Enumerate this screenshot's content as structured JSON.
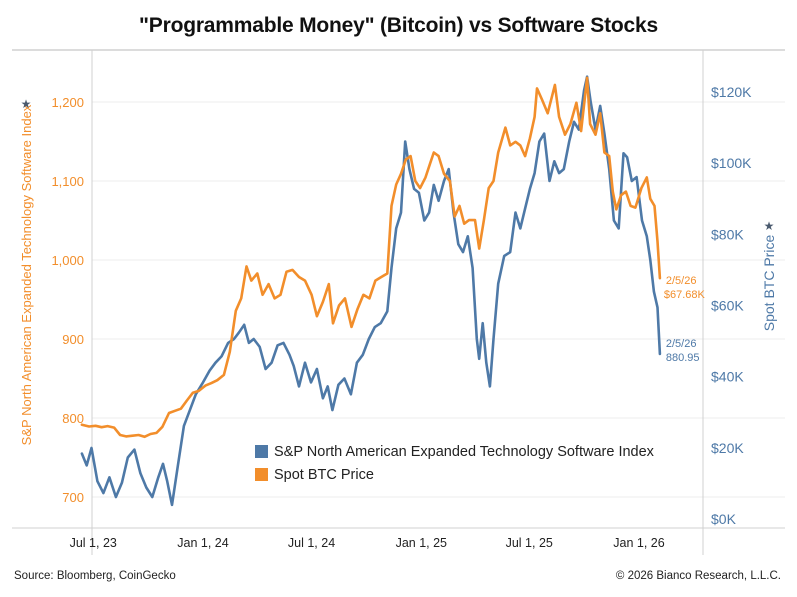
{
  "title": "\"Programmable Money\" (Bitcoin) vs Software Stocks",
  "footer": {
    "source": "Source: Bloomberg, CoinGecko",
    "copyright": "© 2026 Bianco Research, L.L.C."
  },
  "colors": {
    "software": "#4e79a7",
    "btc": "#f28e2b",
    "grid": "#ececec",
    "axis": "#d0d0d0",
    "left_axis_text": "#f28e2b",
    "right_axis_text": "#4e79a7"
  },
  "chart_data": {
    "type": "line",
    "title": "\"Programmable Money\" (Bitcoin) vs Software Stocks",
    "xlabel": "",
    "x_ticks": [
      {
        "label": "Jul 1, 23",
        "date": "2023-07-01"
      },
      {
        "label": "Jan 1, 24",
        "date": "2024-01-01"
      },
      {
        "label": "Jul 1, 24",
        "date": "2024-07-01"
      },
      {
        "label": "Jan 1, 25",
        "date": "2025-01-01"
      },
      {
        "label": "Jul 1, 25",
        "date": "2025-07-01"
      },
      {
        "label": "Jan 1, 26",
        "date": "2026-01-01"
      }
    ],
    "x_range": [
      "2023-06-10",
      "2026-02-05"
    ],
    "y_left": {
      "label": "S&P North American Expanded Technology Software Index",
      "range": [
        675,
        1235
      ],
      "ticks": [
        "700",
        "800",
        "900",
        "1,000",
        "1,100",
        "1,200"
      ],
      "tick_values": [
        700,
        800,
        900,
        1000,
        1100,
        1200
      ]
    },
    "y_right": {
      "label": "Spot BTC Price",
      "range": [
        0,
        128000
      ],
      "ticks": [
        "$0K",
        "$20K",
        "$40K",
        "$60K",
        "$80K",
        "$100K",
        "$120K"
      ],
      "tick_values": [
        0,
        20000,
        40000,
        60000,
        80000,
        100000,
        120000
      ]
    },
    "grid": true,
    "legend_position": "bottom-center",
    "legend": [
      "S&P North American Expanded Technology Software Index",
      "Spot BTC Price"
    ],
    "series": [
      {
        "name": "S&P North American Expanded Technology Software Index",
        "axis": "left",
        "color": "#4e79a7",
        "points": [
          [
            "2023-06-12",
            755
          ],
          [
            "2023-06-20",
            740
          ],
          [
            "2023-06-28",
            762
          ],
          [
            "2023-07-08",
            720
          ],
          [
            "2023-07-18",
            705
          ],
          [
            "2023-07-28",
            725
          ],
          [
            "2023-08-08",
            700
          ],
          [
            "2023-08-18",
            718
          ],
          [
            "2023-08-28",
            750
          ],
          [
            "2023-09-08",
            760
          ],
          [
            "2023-09-18",
            730
          ],
          [
            "2023-09-28",
            712
          ],
          [
            "2023-10-08",
            700
          ],
          [
            "2023-10-18",
            725
          ],
          [
            "2023-10-26",
            742
          ],
          [
            "2023-11-02",
            720
          ],
          [
            "2023-11-10",
            690
          ],
          [
            "2023-11-20",
            740
          ],
          [
            "2023-11-30",
            790
          ],
          [
            "2023-12-10",
            810
          ],
          [
            "2023-12-20",
            830
          ],
          [
            "2024-01-01",
            845
          ],
          [
            "2024-01-12",
            860
          ],
          [
            "2024-01-22",
            870
          ],
          [
            "2024-02-01",
            878
          ],
          [
            "2024-02-12",
            895
          ],
          [
            "2024-02-22",
            900
          ],
          [
            "2024-03-01",
            908
          ],
          [
            "2024-03-10",
            918
          ],
          [
            "2024-03-18",
            895
          ],
          [
            "2024-03-26",
            900
          ],
          [
            "2024-04-05",
            890
          ],
          [
            "2024-04-15",
            862
          ],
          [
            "2024-04-25",
            870
          ],
          [
            "2024-05-05",
            892
          ],
          [
            "2024-05-15",
            895
          ],
          [
            "2024-05-25",
            880
          ],
          [
            "2024-06-01",
            866
          ],
          [
            "2024-06-10",
            840
          ],
          [
            "2024-06-20",
            870
          ],
          [
            "2024-06-30",
            845
          ],
          [
            "2024-07-10",
            862
          ],
          [
            "2024-07-20",
            825
          ],
          [
            "2024-07-28",
            840
          ],
          [
            "2024-08-05",
            810
          ],
          [
            "2024-08-15",
            842
          ],
          [
            "2024-08-25",
            850
          ],
          [
            "2024-09-05",
            830
          ],
          [
            "2024-09-15",
            870
          ],
          [
            "2024-09-25",
            880
          ],
          [
            "2024-10-05",
            900
          ],
          [
            "2024-10-15",
            915
          ],
          [
            "2024-10-25",
            920
          ],
          [
            "2024-11-05",
            935
          ],
          [
            "2024-11-12",
            990
          ],
          [
            "2024-11-20",
            1040
          ],
          [
            "2024-11-28",
            1060
          ],
          [
            "2024-12-05",
            1150
          ],
          [
            "2024-12-12",
            1115
          ],
          [
            "2024-12-20",
            1090
          ],
          [
            "2024-12-28",
            1085
          ],
          [
            "2025-01-06",
            1050
          ],
          [
            "2025-01-14",
            1060
          ],
          [
            "2025-01-22",
            1095
          ],
          [
            "2025-01-30",
            1075
          ],
          [
            "2025-02-08",
            1100
          ],
          [
            "2025-02-16",
            1115
          ],
          [
            "2025-02-24",
            1060
          ],
          [
            "2025-03-04",
            1020
          ],
          [
            "2025-03-12",
            1010
          ],
          [
            "2025-03-20",
            1030
          ],
          [
            "2025-03-28",
            990
          ],
          [
            "2025-04-04",
            900
          ],
          [
            "2025-04-08",
            875
          ],
          [
            "2025-04-14",
            920
          ],
          [
            "2025-04-20",
            870
          ],
          [
            "2025-04-26",
            840
          ],
          [
            "2025-05-02",
            900
          ],
          [
            "2025-05-10",
            970
          ],
          [
            "2025-05-20",
            1005
          ],
          [
            "2025-05-30",
            1010
          ],
          [
            "2025-06-08",
            1060
          ],
          [
            "2025-06-16",
            1040
          ],
          [
            "2025-06-24",
            1065
          ],
          [
            "2025-07-02",
            1090
          ],
          [
            "2025-07-10",
            1110
          ],
          [
            "2025-07-18",
            1150
          ],
          [
            "2025-07-26",
            1160
          ],
          [
            "2025-08-04",
            1100
          ],
          [
            "2025-08-12",
            1125
          ],
          [
            "2025-08-20",
            1110
          ],
          [
            "2025-08-28",
            1115
          ],
          [
            "2025-09-06",
            1150
          ],
          [
            "2025-09-14",
            1175
          ],
          [
            "2025-09-22",
            1165
          ],
          [
            "2025-10-01",
            1215
          ],
          [
            "2025-10-06",
            1232
          ],
          [
            "2025-10-12",
            1200
          ],
          [
            "2025-10-20",
            1165
          ],
          [
            "2025-10-28",
            1195
          ],
          [
            "2025-11-04",
            1160
          ],
          [
            "2025-11-12",
            1115
          ],
          [
            "2025-11-20",
            1050
          ],
          [
            "2025-11-28",
            1040
          ],
          [
            "2025-12-06",
            1135
          ],
          [
            "2025-12-12",
            1130
          ],
          [
            "2025-12-20",
            1100
          ],
          [
            "2025-12-28",
            1105
          ],
          [
            "2026-01-06",
            1050
          ],
          [
            "2026-01-14",
            1030
          ],
          [
            "2026-01-20",
            1000
          ],
          [
            "2026-01-26",
            960
          ],
          [
            "2026-02-01",
            940
          ],
          [
            "2026-02-05",
            880.95
          ]
        ],
        "end_label": {
          "date": "2/5/26",
          "value": "880.95"
        }
      },
      {
        "name": "Spot BTC Price",
        "axis": "right",
        "color": "#f28e2b",
        "points": [
          [
            "2023-06-12",
            26500
          ],
          [
            "2023-06-24",
            26000
          ],
          [
            "2023-07-05",
            26200
          ],
          [
            "2023-07-15",
            25800
          ],
          [
            "2023-07-25",
            26100
          ],
          [
            "2023-08-05",
            25700
          ],
          [
            "2023-08-15",
            23600
          ],
          [
            "2023-08-25",
            23200
          ],
          [
            "2023-09-05",
            23400
          ],
          [
            "2023-09-15",
            23600
          ],
          [
            "2023-09-25",
            23100
          ],
          [
            "2023-10-05",
            23900
          ],
          [
            "2023-10-15",
            24200
          ],
          [
            "2023-10-25",
            25900
          ],
          [
            "2023-11-05",
            29800
          ],
          [
            "2023-11-15",
            30400
          ],
          [
            "2023-11-25",
            31000
          ],
          [
            "2023-12-05",
            33300
          ],
          [
            "2023-12-15",
            35500
          ],
          [
            "2023-12-25",
            36000
          ],
          [
            "2024-01-05",
            37500
          ],
          [
            "2024-01-15",
            38200
          ],
          [
            "2024-01-25",
            39000
          ],
          [
            "2024-02-05",
            40500
          ],
          [
            "2024-02-15",
            47000
          ],
          [
            "2024-02-25",
            58500
          ],
          [
            "2024-03-05",
            62000
          ],
          [
            "2024-03-14",
            71000
          ],
          [
            "2024-03-22",
            67000
          ],
          [
            "2024-04-01",
            69000
          ],
          [
            "2024-04-10",
            63000
          ],
          [
            "2024-04-20",
            66000
          ],
          [
            "2024-04-30",
            62000
          ],
          [
            "2024-05-10",
            63000
          ],
          [
            "2024-05-20",
            69500
          ],
          [
            "2024-05-30",
            70000
          ],
          [
            "2024-06-10",
            68000
          ],
          [
            "2024-06-20",
            67000
          ],
          [
            "2024-07-01",
            63000
          ],
          [
            "2024-07-10",
            57000
          ],
          [
            "2024-07-20",
            61000
          ],
          [
            "2024-07-30",
            66000
          ],
          [
            "2024-08-06",
            55000
          ],
          [
            "2024-08-16",
            60000
          ],
          [
            "2024-08-26",
            62000
          ],
          [
            "2024-09-06",
            54000
          ],
          [
            "2024-09-16",
            59000
          ],
          [
            "2024-09-26",
            63000
          ],
          [
            "2024-10-06",
            62000
          ],
          [
            "2024-10-16",
            67000
          ],
          [
            "2024-10-26",
            68000
          ],
          [
            "2024-11-05",
            69000
          ],
          [
            "2024-11-12",
            88000
          ],
          [
            "2024-11-20",
            94000
          ],
          [
            "2024-11-28",
            97000
          ],
          [
            "2024-12-06",
            101000
          ],
          [
            "2024-12-14",
            102000
          ],
          [
            "2024-12-22",
            95000
          ],
          [
            "2024-12-30",
            93000
          ],
          [
            "2025-01-08",
            96000
          ],
          [
            "2025-01-16",
            100000
          ],
          [
            "2025-01-22",
            103000
          ],
          [
            "2025-01-30",
            102000
          ],
          [
            "2025-02-08",
            97000
          ],
          [
            "2025-02-18",
            95000
          ],
          [
            "2025-02-26",
            85000
          ],
          [
            "2025-03-06",
            88000
          ],
          [
            "2025-03-14",
            83000
          ],
          [
            "2025-03-22",
            84000
          ],
          [
            "2025-04-01",
            84000
          ],
          [
            "2025-04-08",
            76000
          ],
          [
            "2025-04-16",
            84000
          ],
          [
            "2025-04-24",
            93000
          ],
          [
            "2025-05-02",
            95000
          ],
          [
            "2025-05-10",
            103000
          ],
          [
            "2025-05-22",
            110000
          ],
          [
            "2025-05-30",
            105000
          ],
          [
            "2025-06-08",
            106000
          ],
          [
            "2025-06-16",
            105000
          ],
          [
            "2025-06-24",
            102000
          ],
          [
            "2025-07-02",
            107000
          ],
          [
            "2025-07-10",
            113000
          ],
          [
            "2025-07-14",
            121000
          ],
          [
            "2025-07-22",
            118000
          ],
          [
            "2025-08-01",
            114000
          ],
          [
            "2025-08-13",
            122000
          ],
          [
            "2025-08-20",
            113000
          ],
          [
            "2025-08-30",
            108000
          ],
          [
            "2025-09-08",
            111000
          ],
          [
            "2025-09-18",
            117000
          ],
          [
            "2025-09-26",
            109000
          ],
          [
            "2025-10-06",
            124000
          ],
          [
            "2025-10-11",
            111000
          ],
          [
            "2025-10-20",
            108000
          ],
          [
            "2025-10-28",
            114000
          ],
          [
            "2025-11-04",
            103000
          ],
          [
            "2025-11-12",
            102000
          ],
          [
            "2025-11-18",
            92000
          ],
          [
            "2025-11-24",
            87000
          ],
          [
            "2025-12-02",
            91000
          ],
          [
            "2025-12-10",
            92000
          ],
          [
            "2025-12-18",
            88000
          ],
          [
            "2025-12-26",
            87500
          ],
          [
            "2026-01-05",
            93000
          ],
          [
            "2026-01-14",
            96000
          ],
          [
            "2026-01-20",
            90000
          ],
          [
            "2026-01-27",
            88000
          ],
          [
            "2026-02-01",
            78000
          ],
          [
            "2026-02-05",
            67680
          ]
        ],
        "end_label": {
          "date": "2/5/26",
          "value": "$67.68K"
        }
      }
    ]
  }
}
